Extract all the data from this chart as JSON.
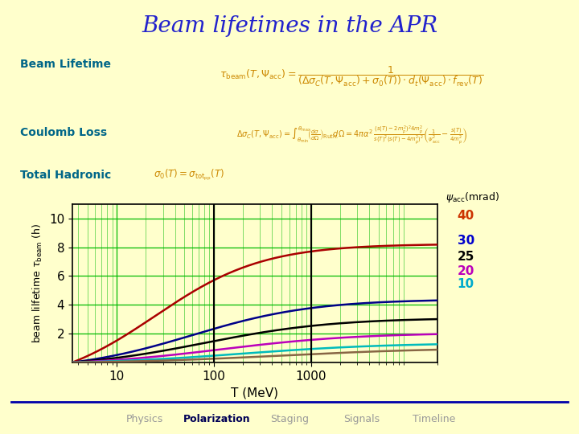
{
  "title": "Beam lifetimes in the APR",
  "title_color": "#2222cc",
  "title_fontsize": 20,
  "bg_outer": "#ffffcc",
  "bg_box": "#aaddee",
  "bg_formula": "#ffffaa",
  "grid_color": "#00bb00",
  "xlabel": "T (MeV)",
  "xlim": [
    3.5,
    20000
  ],
  "ylim": [
    0,
    11
  ],
  "yticks": [
    2,
    4,
    6,
    8,
    10
  ],
  "psi_values": [
    40,
    30,
    25,
    20,
    10,
    0
  ],
  "psi_colors": [
    "#aa0000",
    "#000088",
    "#000000",
    "#bb00bb",
    "#00bbbb",
    "#886644"
  ],
  "psi_label_colors": [
    "#cc3300",
    "#0000cc",
    "#000000",
    "#cc00cc",
    "#00aacc"
  ],
  "psi_labels": [
    "40",
    "30",
    "25",
    "20",
    "10"
  ],
  "curve_asymptotes": [
    10.0,
    5.0,
    3.5,
    2.3,
    1.5,
    1.1
  ],
  "curve_rise_center": [
    25,
    60,
    80,
    120,
    200,
    500
  ],
  "curve_steepness": [
    1.8,
    1.6,
    1.5,
    1.4,
    1.3,
    1.2
  ],
  "footer_items": [
    "Physics",
    "Polarization",
    "Staging",
    "Signals",
    "Timeline"
  ],
  "footer_bold": "Polarization",
  "footer_color": "#999999",
  "footer_bold_color": "#000055",
  "vlines_x": [
    100,
    1000
  ],
  "vline_color": "#000000",
  "box_label_color": "#006688",
  "formula_color": "#cc8800",
  "label_color_30": "#0000cc",
  "label_color_25": "#000000",
  "label_color_20": "#bb00bb",
  "label_color_10": "#00aacc",
  "label_color_40": "#cc3300"
}
